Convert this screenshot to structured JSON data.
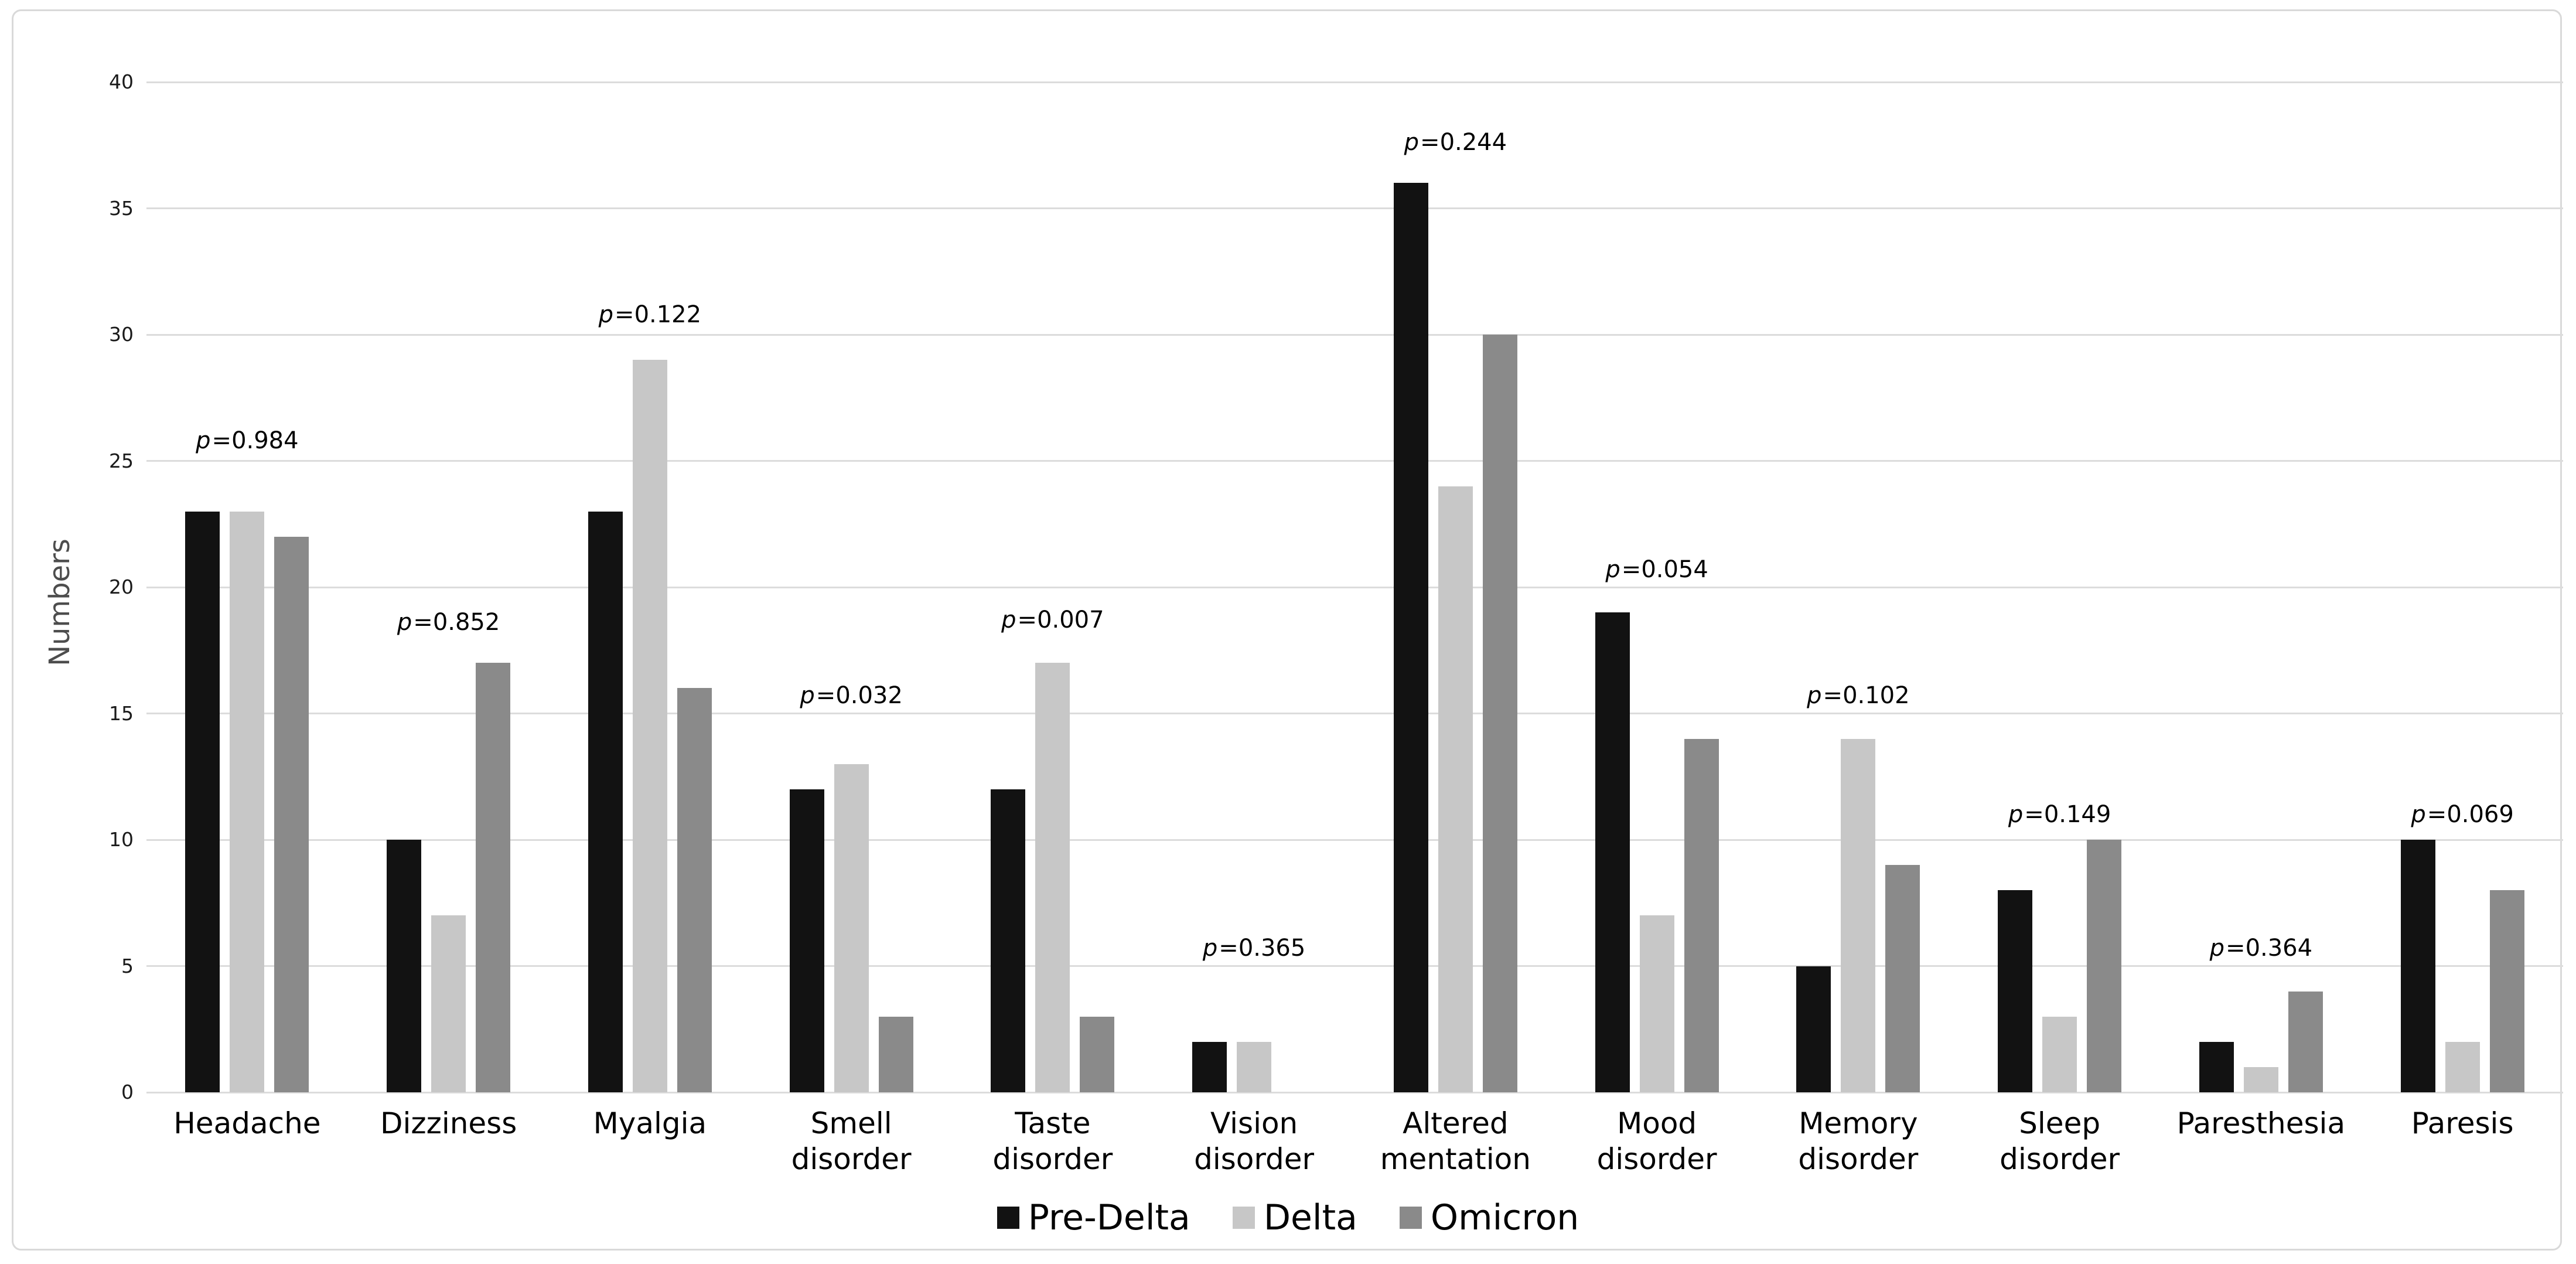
{
  "figure": {
    "background": "#ffffff",
    "border_color": "#d9d9d9",
    "gridline_color": "#dcdcdc"
  },
  "chart_data": {
    "type": "bar",
    "title": "",
    "xlabel": "",
    "ylabel": "Numbers",
    "ylim": [
      0,
      40
    ],
    "yticks": [
      0,
      5,
      10,
      15,
      20,
      25,
      30,
      35,
      40
    ],
    "grid": true,
    "legend_position": "bottom",
    "categories": [
      "Headache",
      "Dizziness",
      "Myalgia",
      "Smell disorder",
      "Taste disorder",
      "Vision disorder",
      "Altered mentation",
      "Mood disorder",
      "Memory disorder",
      "Sleep disorder",
      "Paresthesia",
      "Paresis"
    ],
    "category_lines": [
      [
        "Headache"
      ],
      [
        "Dizziness"
      ],
      [
        "Myalgia"
      ],
      [
        "Smell",
        "disorder"
      ],
      [
        "Taste",
        "disorder"
      ],
      [
        "Vision",
        "disorder"
      ],
      [
        "Altered",
        "mentation"
      ],
      [
        "Mood",
        "disorder"
      ],
      [
        "Memory",
        "disorder"
      ],
      [
        "Sleep",
        "disorder"
      ],
      [
        "Paresthesia"
      ],
      [
        "Paresis"
      ]
    ],
    "series": [
      {
        "name": "Pre-Delta",
        "color": "#121212",
        "values": [
          23,
          10,
          23,
          12,
          12,
          2,
          36,
          19,
          5,
          8,
          2,
          10
        ]
      },
      {
        "name": "Delta",
        "color": "#c7c7c7",
        "values": [
          23,
          7,
          29,
          13,
          17,
          2,
          24,
          7,
          14,
          3,
          1,
          2
        ]
      },
      {
        "name": "Omicron",
        "color": "#8a8a8a",
        "values": [
          22,
          17,
          16,
          3,
          3,
          0,
          30,
          14,
          9,
          10,
          4,
          8
        ]
      }
    ],
    "annotations": [
      {
        "category": "Headache",
        "text": "p=0.984",
        "y": 25.8
      },
      {
        "category": "Dizziness",
        "text": "p=0.852",
        "y": 18.6
      },
      {
        "category": "Myalgia",
        "text": "p=0.122",
        "y": 30.8
      },
      {
        "category": "Smell disorder",
        "text": "p=0.032",
        "y": 15.7
      },
      {
        "category": "Taste disorder",
        "text": "p=0.007",
        "y": 18.7
      },
      {
        "category": "Vision disorder",
        "text": "p=0.365",
        "y": 5.7
      },
      {
        "category": "Altered mentation",
        "text": "p=0.244",
        "y": 37.6
      },
      {
        "category": "Mood disorder",
        "text": "p=0.054",
        "y": 20.7
      },
      {
        "category": "Memory disorder",
        "text": "p=0.102",
        "y": 15.7
      },
      {
        "category": "Sleep disorder",
        "text": "p=0.149",
        "y": 11.0
      },
      {
        "category": "Paresthesia",
        "text": "p=0.364",
        "y": 5.7
      },
      {
        "category": "Paresis",
        "text": "p=0.069",
        "y": 11.0
      }
    ]
  }
}
